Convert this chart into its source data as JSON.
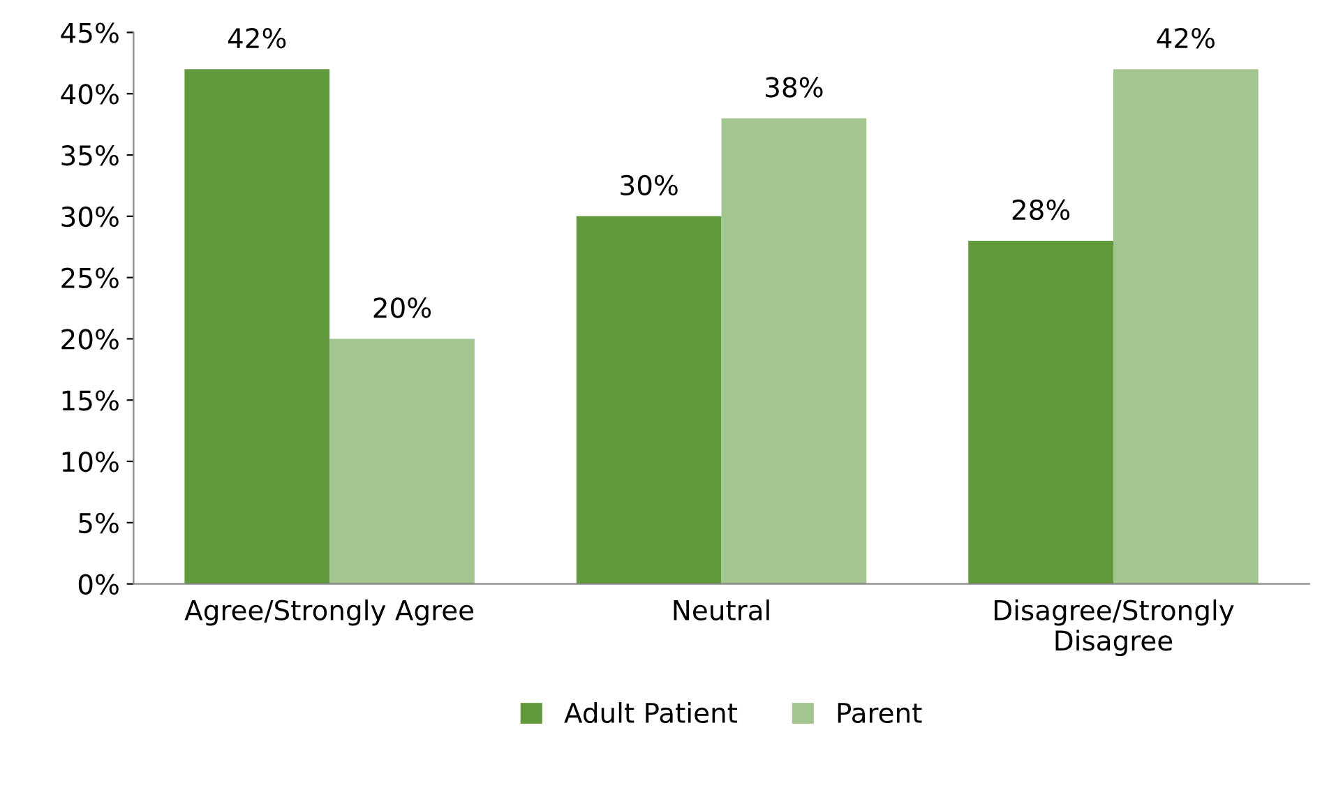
{
  "chart_data": {
    "type": "bar",
    "categories": [
      "Agree/Strongly Agree",
      "Neutral",
      "Disagree/Strongly\nDisagree"
    ],
    "series": [
      {
        "name": "Adult Patient",
        "color": "#619a3d",
        "values": [
          42,
          30,
          28
        ],
        "value_labels": [
          "42%",
          "30%",
          "28%"
        ]
      },
      {
        "name": "Parent",
        "color": "#a3c58f",
        "values": [
          20,
          38,
          42
        ],
        "value_labels": [
          "20%",
          "38%",
          "42%"
        ]
      }
    ],
    "ylim": [
      0,
      45
    ],
    "yticks": [
      {
        "value": 0,
        "label": "0%"
      },
      {
        "value": 5,
        "label": "5%"
      },
      {
        "value": 10,
        "label": "10%"
      },
      {
        "value": 15,
        "label": "15%"
      },
      {
        "value": 20,
        "label": "20%"
      },
      {
        "value": 25,
        "label": "25%"
      },
      {
        "value": 30,
        "label": "30%"
      },
      {
        "value": 35,
        "label": "35%"
      },
      {
        "value": 40,
        "label": "40%"
      },
      {
        "value": 45,
        "label": "45%"
      }
    ],
    "grid": false,
    "legend": "bottom"
  }
}
